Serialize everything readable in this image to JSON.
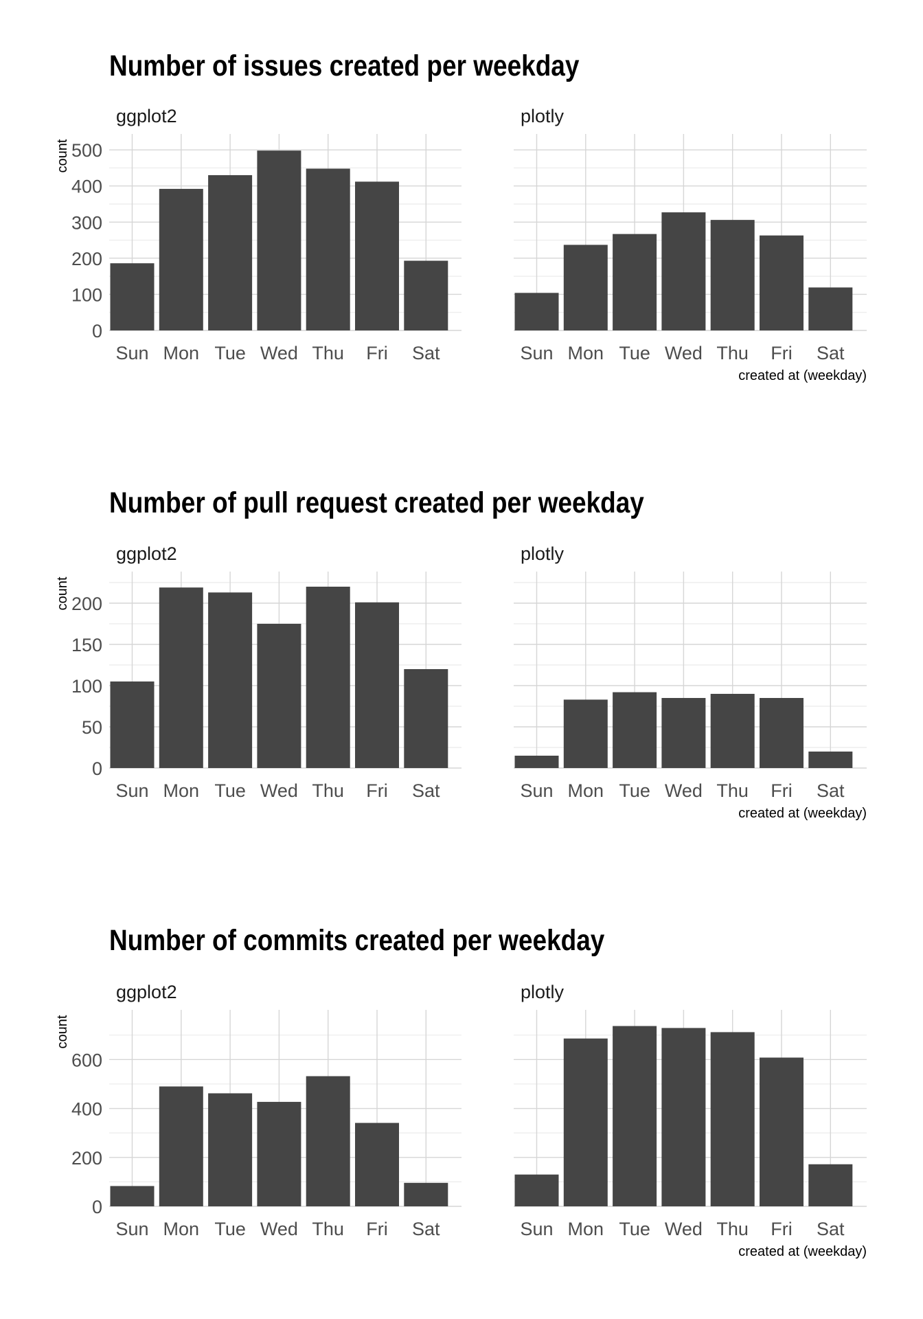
{
  "colors": {
    "bar": "#454545",
    "grid_major": "#d6d6d6",
    "grid_minor": "#ebebeb",
    "background": "#ffffff"
  },
  "chart_data": [
    {
      "type": "bar",
      "title": "Number of issues created per weekday",
      "categories": [
        "Sun",
        "Mon",
        "Tue",
        "Wed",
        "Thu",
        "Fri",
        "Sat"
      ],
      "ylabel": "count",
      "xlabel": "created at (weekday)",
      "ylim": [
        0,
        525
      ],
      "yticks": [
        0,
        100,
        200,
        300,
        400,
        500
      ],
      "grid": true,
      "panels": [
        {
          "name": "ggplot2",
          "values": [
            186,
            392,
            430,
            498,
            448,
            412,
            193
          ]
        },
        {
          "name": "plotly",
          "values": [
            104,
            237,
            267,
            327,
            306,
            263,
            119
          ]
        }
      ]
    },
    {
      "type": "bar",
      "title": "Number of pull request created per weekday",
      "categories": [
        "Sun",
        "Mon",
        "Tue",
        "Wed",
        "Thu",
        "Fri",
        "Sat"
      ],
      "ylabel": "count",
      "xlabel": "created at (weekday)",
      "ylim": [
        0,
        230
      ],
      "yticks": [
        0,
        50,
        100,
        150,
        200
      ],
      "grid": true,
      "panels": [
        {
          "name": "ggplot2",
          "values": [
            105,
            219,
            213,
            175,
            220,
            201,
            120
          ]
        },
        {
          "name": "plotly",
          "values": [
            15,
            83,
            92,
            85,
            90,
            85,
            20
          ]
        }
      ]
    },
    {
      "type": "bar",
      "title": "Number of commits created per weekday",
      "categories": [
        "Sun",
        "Mon",
        "Tue",
        "Wed",
        "Thu",
        "Fri",
        "Sat"
      ],
      "ylabel": "count",
      "xlabel": "created at (weekday)",
      "ylim": [
        0,
        775
      ],
      "yticks": [
        0,
        200,
        400,
        600
      ],
      "grid": true,
      "panels": [
        {
          "name": "ggplot2",
          "values": [
            83,
            490,
            462,
            427,
            532,
            341,
            96
          ]
        },
        {
          "name": "plotly",
          "values": [
            130,
            686,
            737,
            729,
            712,
            608,
            172
          ]
        }
      ]
    }
  ]
}
